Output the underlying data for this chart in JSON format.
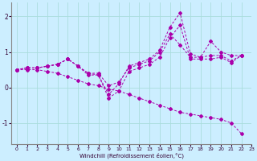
{
  "xlabel": "Windchill (Refroidissement éolien,°C)",
  "background_color": "#cceeff",
  "grid_color": "#aadddd",
  "line_color": "#aa00aa",
  "xlim": [
    -0.5,
    23
  ],
  "ylim": [
    -1.6,
    2.4
  ],
  "yticks": [
    -1,
    0,
    1,
    2
  ],
  "xticks": [
    0,
    1,
    2,
    3,
    4,
    5,
    6,
    7,
    8,
    9,
    10,
    11,
    12,
    13,
    14,
    15,
    16,
    17,
    18,
    19,
    20,
    21,
    22,
    23
  ],
  "series": [
    {
      "x": [
        0,
        1,
        2,
        3,
        4,
        5,
        6,
        7,
        8,
        9,
        10,
        11,
        12,
        13,
        14,
        15,
        16,
        17,
        18,
        19,
        20,
        21,
        22
      ],
      "y": [
        0.5,
        0.55,
        0.55,
        0.6,
        0.65,
        0.8,
        0.6,
        0.4,
        0.4,
        0.05,
        0.15,
        0.55,
        0.65,
        0.75,
        1.0,
        1.5,
        1.2,
        0.85,
        0.85,
        1.3,
        1.0,
        0.9,
        0.9
      ]
    },
    {
      "x": [
        0,
        1,
        2,
        3,
        4,
        5,
        6,
        7,
        8,
        9,
        10,
        11,
        12,
        13,
        14,
        15,
        16,
        17,
        18,
        19,
        20,
        21,
        22
      ],
      "y": [
        0.5,
        0.55,
        0.55,
        0.6,
        0.65,
        0.8,
        0.6,
        0.4,
        0.35,
        -0.3,
        -0.1,
        0.45,
        0.55,
        0.65,
        0.85,
        1.4,
        1.75,
        0.8,
        0.8,
        0.8,
        0.85,
        0.7,
        0.9
      ]
    },
    {
      "x": [
        0,
        1,
        2,
        3,
        4,
        5,
        6,
        7,
        8,
        9,
        10,
        11,
        12,
        13,
        14,
        15,
        16,
        17,
        18,
        19,
        20,
        21,
        22
      ],
      "y": [
        0.5,
        0.55,
        0.55,
        0.6,
        0.65,
        0.8,
        0.6,
        0.35,
        0.35,
        -0.2,
        0.1,
        0.6,
        0.7,
        0.8,
        1.05,
        1.7,
        2.1,
        0.95,
        0.85,
        0.9,
        0.9,
        0.75,
        0.9
      ]
    },
    {
      "x": [
        0,
        1,
        2,
        3,
        4,
        5,
        6,
        7,
        8,
        9,
        10,
        11,
        12,
        13,
        14,
        15,
        16,
        17,
        18,
        19,
        20,
        21,
        22
      ],
      "y": [
        0.5,
        0.5,
        0.5,
        0.45,
        0.4,
        0.3,
        0.2,
        0.1,
        0.05,
        -0.05,
        -0.1,
        -0.2,
        -0.3,
        -0.4,
        -0.5,
        -0.6,
        -0.7,
        -0.75,
        -0.8,
        -0.85,
        -0.9,
        -1.0,
        -1.3
      ]
    }
  ]
}
